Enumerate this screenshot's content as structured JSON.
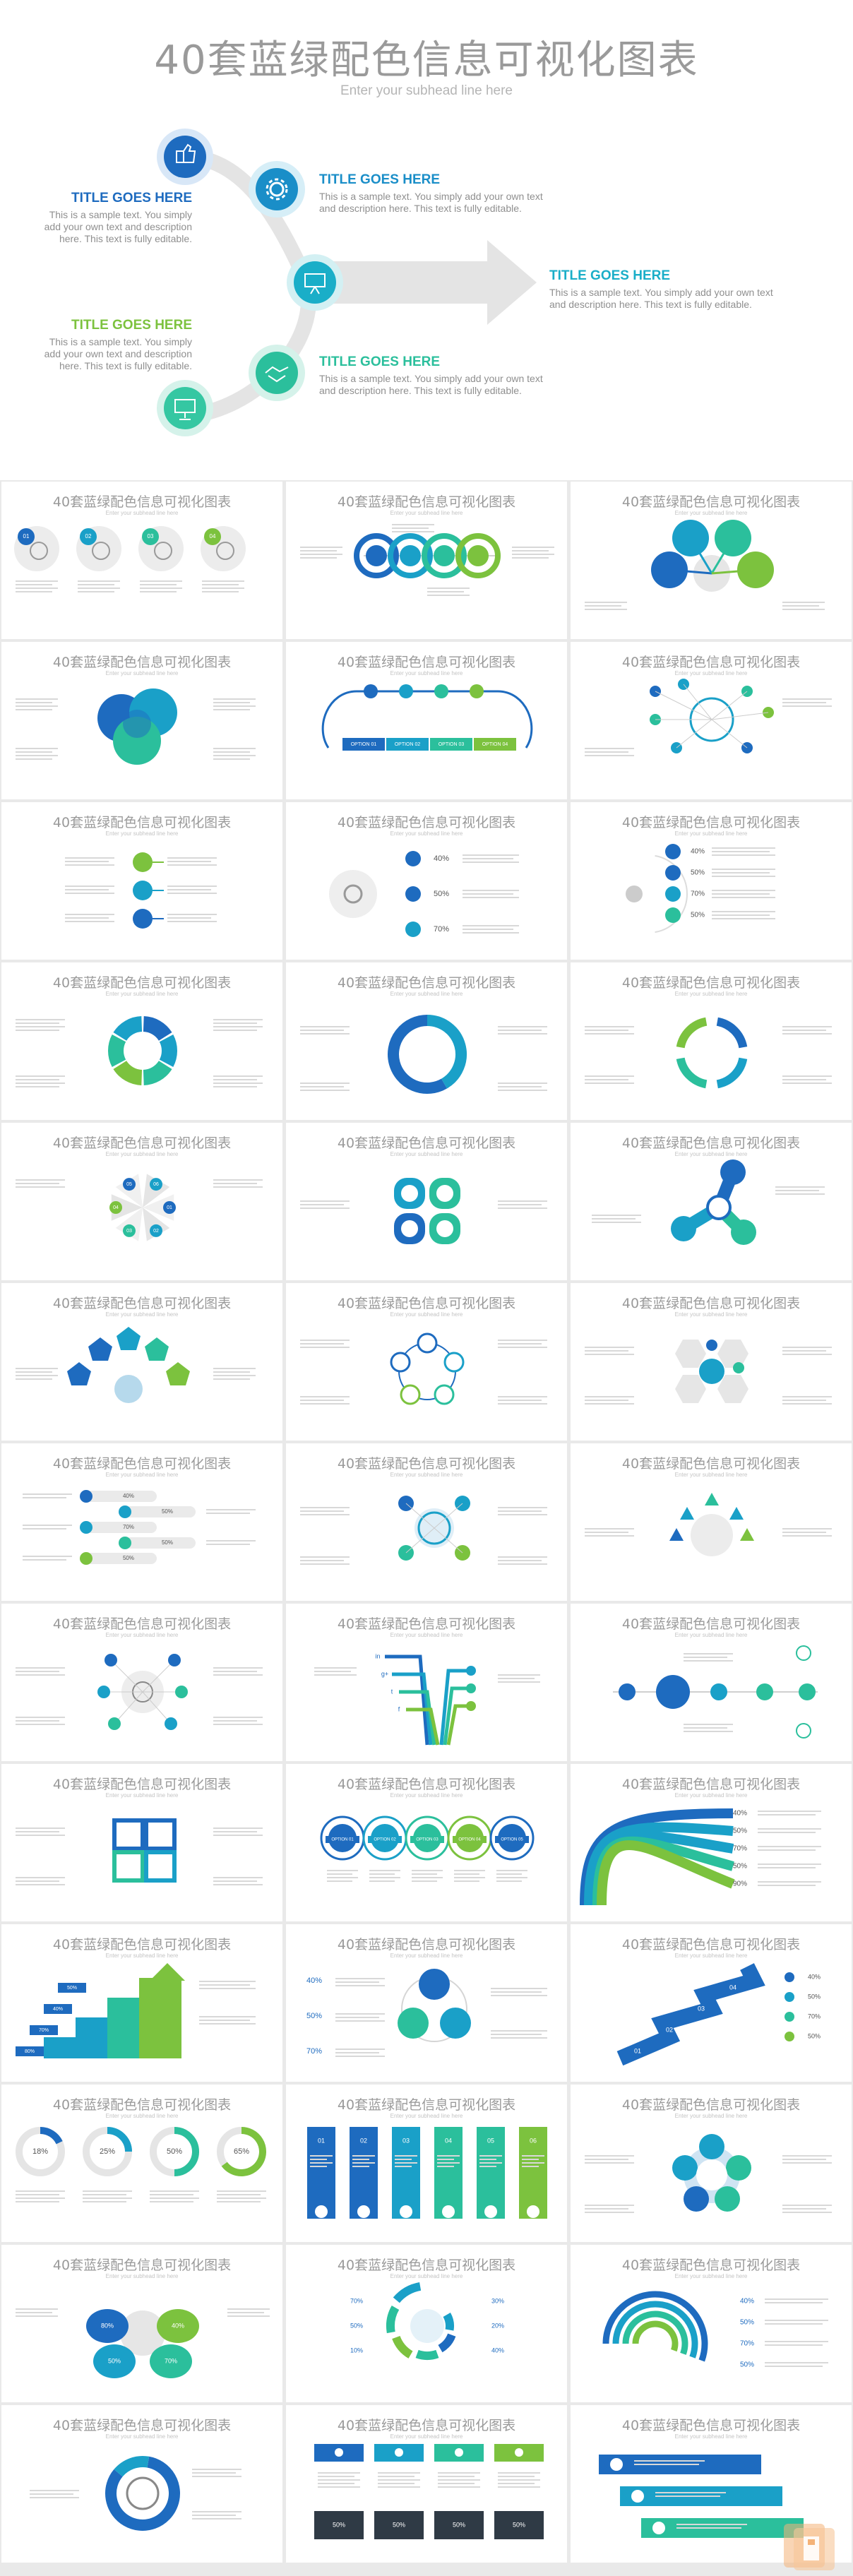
{
  "hero": {
    "title": "40套蓝绿配色信息可视化图表",
    "subtitle": "Enter your subhead line here",
    "callouts": [
      {
        "title": "TITLE GOES HERE",
        "body": "This is a sample text. You simply add your own text and description here. This text is fully editable.",
        "color": "#1e6bbf"
      },
      {
        "title": "TITLE GOES HERE",
        "body": "This is a sample text. You simply add your own text and description here. This text is fully editable.",
        "color": "#1aa0c8"
      },
      {
        "title": "TITLE GOES HERE",
        "body": "This is a sample text. You simply add your own text and description here. This text is fully editable.",
        "color": "#1aa0c8"
      },
      {
        "title": "TITLE GOES HERE",
        "body": "This is a sample text. You simply add your own text and description here. This text is fully editable.",
        "color": "#7cc23e"
      },
      {
        "title": "TITLE GOES HERE",
        "body": "This is a sample text. You simply add your own text and description here. This text is fully editable.",
        "color": "#2bbf9c"
      }
    ],
    "icons": [
      "thumbs-up-icon",
      "gear-icon",
      "presentation-icon",
      "handshake-icon",
      "monitor-icon"
    ]
  },
  "colors": {
    "blue": "#1e6bbf",
    "cyan": "#1aa0c8",
    "teal": "#2bbf9c",
    "green": "#7cc23e",
    "gray": "#e6e6e6"
  },
  "slide_title": "40套蓝绿配色信息可视化图表",
  "slide_subtitle": "Enter your subhead line here",
  "slides": [
    {
      "kind": "teardrops",
      "labels": [
        "01",
        "02",
        "03",
        "04"
      ]
    },
    {
      "kind": "chain"
    },
    {
      "kind": "flower"
    },
    {
      "kind": "venn"
    },
    {
      "kind": "arrowloop",
      "labels": [
        "OPTION 01",
        "OPTION 02",
        "OPTION 03",
        "OPTION 04"
      ]
    },
    {
      "kind": "scatter"
    },
    {
      "kind": "vertical-dots"
    },
    {
      "kind": "gear-percent",
      "labels": [
        "40%",
        "50%",
        "70%"
      ]
    },
    {
      "kind": "semicircle-percent",
      "labels": [
        "40%",
        "50%",
        "70%",
        "50%"
      ]
    },
    {
      "kind": "hexring"
    },
    {
      "kind": "ring"
    },
    {
      "kind": "cyclearrows"
    },
    {
      "kind": "pinwheel",
      "labels": [
        "01",
        "02",
        "03",
        "04",
        "05",
        "06"
      ]
    },
    {
      "kind": "quad"
    },
    {
      "kind": "triwing"
    },
    {
      "kind": "pentagons"
    },
    {
      "kind": "circlering"
    },
    {
      "kind": "hexflower"
    },
    {
      "kind": "pills",
      "labels": [
        "40%",
        "50%",
        "70%",
        "50%",
        "50%"
      ]
    },
    {
      "kind": "megaphone"
    },
    {
      "kind": "arrows-out"
    },
    {
      "kind": "hub"
    },
    {
      "kind": "socialtree",
      "labels": [
        "in",
        "g+",
        "t",
        "f"
      ]
    },
    {
      "kind": "lineflow"
    },
    {
      "kind": "squares"
    },
    {
      "kind": "circlechain",
      "labels": [
        "OPTION 01",
        "OPTION 02",
        "OPTION 03",
        "OPTION 04",
        "OPTION 05"
      ]
    },
    {
      "kind": "bands",
      "labels": [
        "40%",
        "50%",
        "70%",
        "50%",
        "90%"
      ]
    },
    {
      "kind": "stairs",
      "labels": [
        "80%",
        "70%",
        "40%",
        "50%"
      ]
    },
    {
      "kind": "triring",
      "labels": [
        "40%",
        "50%",
        "70%"
      ]
    },
    {
      "kind": "zigzag",
      "labels": [
        "01",
        "02",
        "03",
        "04",
        "40%",
        "50%",
        "70%",
        "50%"
      ]
    },
    {
      "kind": "donuts",
      "labels": [
        "18%",
        "25%",
        "50%",
        "65%"
      ]
    },
    {
      "kind": "columns",
      "labels": [
        "01",
        "02",
        "03",
        "04",
        "05",
        "06"
      ]
    },
    {
      "kind": "petals"
    },
    {
      "kind": "leafs",
      "labels": [
        "80%",
        "40%",
        "50%",
        "70%"
      ]
    },
    {
      "kind": "radial",
      "labels": [
        "70%",
        "50%",
        "10%",
        "30%",
        "20%",
        "40%"
      ]
    },
    {
      "kind": "arcs",
      "labels": [
        "40%",
        "50%",
        "70%",
        "50%"
      ]
    },
    {
      "kind": "bigring"
    },
    {
      "kind": "tabs",
      "labels": [
        "50%",
        "50%",
        "50%",
        "50%"
      ]
    },
    {
      "kind": "steps3"
    }
  ],
  "logo": "watermark-logo"
}
